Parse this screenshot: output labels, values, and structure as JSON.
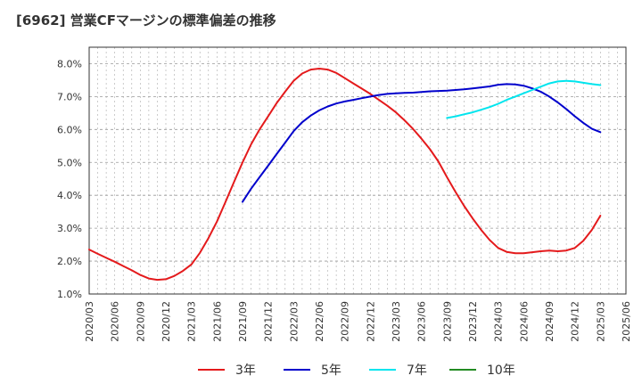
{
  "chart_data": {
    "type": "line",
    "title": "[6962]  営業CFマージンの標準偏差の推移",
    "xlabel": "",
    "ylabel": "",
    "x_ticks": [
      "2020/03",
      "2020/06",
      "2020/09",
      "2020/12",
      "2021/03",
      "2021/06",
      "2021/09",
      "2021/12",
      "2022/03",
      "2022/06",
      "2022/09",
      "2022/12",
      "2023/03",
      "2023/06",
      "2023/09",
      "2023/12",
      "2024/03",
      "2024/06",
      "2024/09",
      "2024/12",
      "2025/03",
      "2025/06"
    ],
    "y_ticks": [
      "1.0%",
      "2.0%",
      "3.0%",
      "4.0%",
      "5.0%",
      "6.0%",
      "7.0%",
      "8.0%"
    ],
    "ylim": [
      1.0,
      8.5
    ],
    "grid": true,
    "legend_position": "bottom",
    "series": [
      {
        "name": "3年",
        "color": "#e41a1c",
        "x": [
          "2020/03",
          "2020/04",
          "2020/05",
          "2020/06",
          "2020/07",
          "2020/08",
          "2020/09",
          "2020/10",
          "2020/11",
          "2020/12",
          "2021/01",
          "2021/02",
          "2021/03",
          "2021/04",
          "2021/05",
          "2021/06",
          "2021/07",
          "2021/08",
          "2021/09",
          "2021/10",
          "2021/11",
          "2021/12",
          "2022/01",
          "2022/02",
          "2022/03",
          "2022/04",
          "2022/05",
          "2022/06",
          "2022/07",
          "2022/08",
          "2022/09",
          "2022/10",
          "2022/11",
          "2022/12",
          "2023/01",
          "2023/02",
          "2023/03",
          "2023/04",
          "2023/05",
          "2023/06",
          "2023/07",
          "2023/08",
          "2023/09",
          "2023/10",
          "2023/11",
          "2023/12",
          "2024/01",
          "2024/02",
          "2024/03",
          "2024/04",
          "2024/05",
          "2024/06",
          "2024/07",
          "2024/08",
          "2024/09",
          "2024/10",
          "2024/11",
          "2024/12",
          "2025/01",
          "2025/02",
          "2025/03"
        ],
        "values": [
          2.35,
          2.22,
          2.1,
          1.98,
          1.85,
          1.72,
          1.58,
          1.47,
          1.43,
          1.45,
          1.55,
          1.7,
          1.9,
          2.25,
          2.7,
          3.2,
          3.8,
          4.4,
          5.0,
          5.55,
          6.0,
          6.4,
          6.8,
          7.15,
          7.48,
          7.7,
          7.82,
          7.85,
          7.82,
          7.72,
          7.56,
          7.4,
          7.24,
          7.08,
          6.9,
          6.72,
          6.52,
          6.28,
          6.02,
          5.72,
          5.4,
          5.02,
          4.55,
          4.1,
          3.68,
          3.3,
          2.95,
          2.64,
          2.4,
          2.28,
          2.24,
          2.24,
          2.27,
          2.3,
          2.32,
          2.3,
          2.32,
          2.4,
          2.62,
          2.95,
          3.38
        ]
      },
      {
        "name": "5年",
        "color": "#0000cc",
        "x": [
          "2021/09",
          "2021/10",
          "2021/11",
          "2021/12",
          "2022/01",
          "2022/02",
          "2022/03",
          "2022/04",
          "2022/05",
          "2022/06",
          "2022/07",
          "2022/08",
          "2022/09",
          "2022/10",
          "2022/11",
          "2022/12",
          "2023/01",
          "2023/02",
          "2023/03",
          "2023/04",
          "2023/05",
          "2023/06",
          "2023/07",
          "2023/08",
          "2023/09",
          "2023/10",
          "2023/11",
          "2023/12",
          "2024/01",
          "2024/02",
          "2024/03",
          "2024/04",
          "2024/05",
          "2024/06",
          "2024/07",
          "2024/08",
          "2024/09",
          "2024/10",
          "2024/11",
          "2024/12",
          "2025/01",
          "2025/02",
          "2025/03"
        ],
        "values": [
          3.8,
          4.2,
          4.55,
          4.9,
          5.25,
          5.6,
          5.95,
          6.22,
          6.42,
          6.58,
          6.7,
          6.79,
          6.85,
          6.9,
          6.95,
          7.0,
          7.05,
          7.08,
          7.1,
          7.11,
          7.12,
          7.14,
          7.16,
          7.17,
          7.18,
          7.2,
          7.22,
          7.25,
          7.28,
          7.31,
          7.36,
          7.38,
          7.37,
          7.33,
          7.25,
          7.15,
          7.0,
          6.82,
          6.62,
          6.4,
          6.2,
          6.02,
          5.92
        ]
      },
      {
        "name": "7年",
        "color": "#00e5ee",
        "x": [
          "2023/09",
          "2023/10",
          "2023/11",
          "2023/12",
          "2024/01",
          "2024/02",
          "2024/03",
          "2024/04",
          "2024/05",
          "2024/06",
          "2024/07",
          "2024/08",
          "2024/09",
          "2024/10",
          "2024/11",
          "2024/12",
          "2025/01",
          "2025/02",
          "2025/03"
        ],
        "values": [
          6.35,
          6.4,
          6.46,
          6.52,
          6.6,
          6.68,
          6.78,
          6.9,
          7.0,
          7.1,
          7.2,
          7.3,
          7.4,
          7.46,
          7.48,
          7.46,
          7.42,
          7.38,
          7.35
        ]
      },
      {
        "name": "10年",
        "color": "#228b22",
        "x": [],
        "values": []
      }
    ]
  }
}
